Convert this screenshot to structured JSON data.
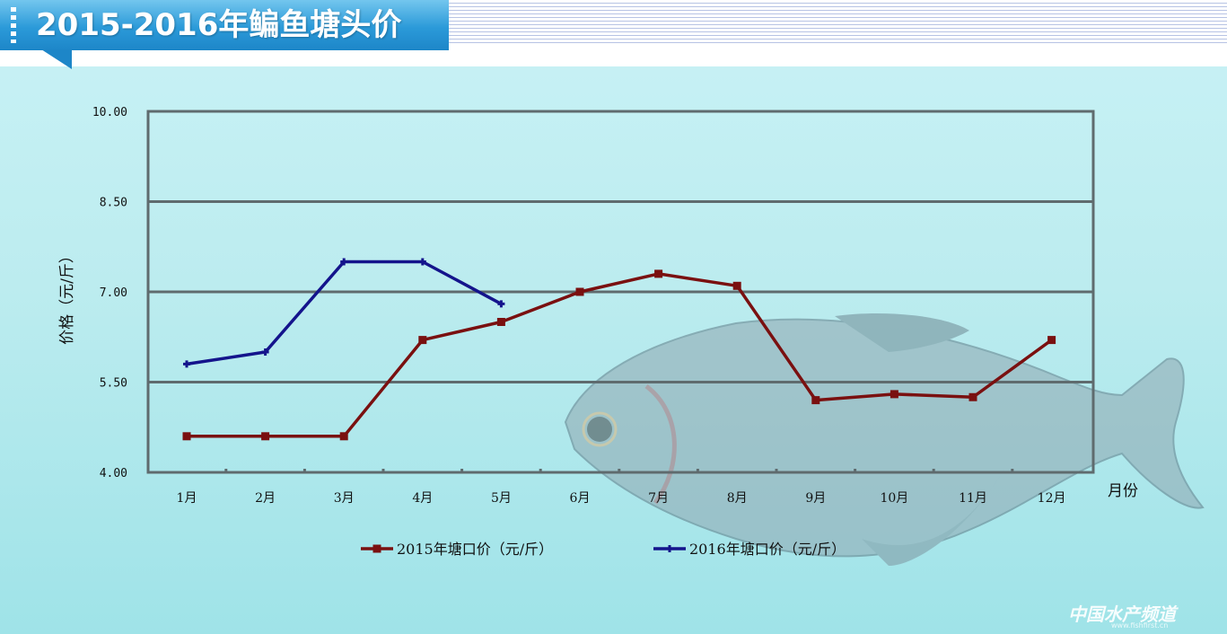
{
  "header": {
    "title": "2015-2016年鳊鱼塘头价"
  },
  "watermark": {
    "text": "中国水产频道",
    "url": "www.fishfirst.cn"
  },
  "colors": {
    "series_2015": "#7a1010",
    "series_2016": "#14148c",
    "grid": "#5f6b6e",
    "title_banner": "#2b9ad9"
  },
  "chart_data": {
    "type": "line",
    "title": "2015-2016年鳊鱼塘头价",
    "ylabel": "价格（元/斤）",
    "xlabel": "月份",
    "ylim": [
      4.0,
      10.0
    ],
    "yticks": [
      "10.00",
      "8.50",
      "7.00",
      "5.50",
      "4.00"
    ],
    "categories": [
      "1月",
      "2月",
      "3月",
      "4月",
      "5月",
      "6月",
      "7月",
      "8月",
      "9月",
      "10月",
      "11月",
      "12月"
    ],
    "series": [
      {
        "name": "2015年塘口价（元/斤）",
        "marker": "square",
        "values": [
          4.6,
          4.6,
          4.6,
          6.2,
          6.5,
          7.0,
          7.3,
          7.1,
          5.2,
          5.3,
          5.25,
          6.2
        ]
      },
      {
        "name": "2016年塘口价（元/斤）",
        "marker": "star",
        "values": [
          5.8,
          6.0,
          7.5,
          7.5,
          6.8,
          null,
          null,
          null,
          null,
          null,
          null,
          null
        ]
      }
    ],
    "grid": true,
    "legend": "bottom"
  }
}
